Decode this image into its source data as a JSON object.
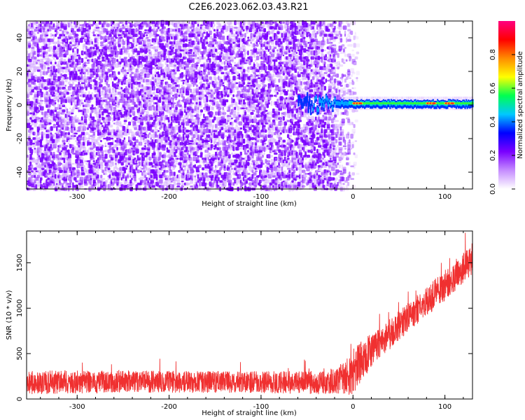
{
  "title": "C2E6.2023.062.03.43.R21",
  "chart_data": [
    {
      "type": "heatmap",
      "xlabel": "Height of straight line (km)",
      "ylabel": "Frequency (Hz)",
      "xlim": [
        -355,
        130
      ],
      "ylim": [
        -50,
        50
      ],
      "x_ticks": [
        "-300",
        "-200",
        "-100",
        "0",
        "100"
      ],
      "y_ticks": [
        "-40",
        "-20",
        "0",
        "20",
        "40"
      ],
      "noise_region": {
        "x_start": -355,
        "x_end": -30,
        "fade_end": 5,
        "freq_range": [
          -50,
          50
        ],
        "color": "#7a00ff"
      },
      "signal_track": {
        "x_start": -60,
        "x_end": 130,
        "center_frequency_hz": 1,
        "half_width_hz": 2,
        "hot_spots_km": [
          5,
          85,
          105
        ]
      },
      "colorbar": {
        "label": "Normalized spectral amplitude",
        "range": [
          0,
          1
        ],
        "ticks": [
          "0.0",
          "0.2",
          "0.4",
          "0.6",
          "0.8"
        ],
        "colors": [
          "#ffffff",
          "#c58cff",
          "#7a00ff",
          "#0000ff",
          "#00c8ff",
          "#00ff50",
          "#ffff00",
          "#ff8c00",
          "#ff0000",
          "#ff0080"
        ]
      }
    },
    {
      "type": "line",
      "xlabel": "Height of straight line (km)",
      "ylabel": "SNR (10 * v/v)",
      "xlim": [
        -355,
        130
      ],
      "ylim": [
        0,
        1850
      ],
      "x_ticks": [
        "-300",
        "-200",
        "-100",
        "0",
        "100"
      ],
      "y_ticks": [
        "0",
        "500",
        "1000",
        "1500"
      ],
      "color": "#f03030",
      "envelope": {
        "x": [
          -355,
          -300,
          -200,
          -100,
          -30,
          -10,
          0,
          10,
          30,
          60,
          100,
          130
        ],
        "mean": [
          180,
          190,
          190,
          185,
          180,
          220,
          300,
          430,
          620,
          900,
          1250,
          1550
        ],
        "spread": [
          130,
          130,
          120,
          120,
          130,
          180,
          250,
          220,
          170,
          160,
          170,
          170
        ]
      }
    }
  ]
}
